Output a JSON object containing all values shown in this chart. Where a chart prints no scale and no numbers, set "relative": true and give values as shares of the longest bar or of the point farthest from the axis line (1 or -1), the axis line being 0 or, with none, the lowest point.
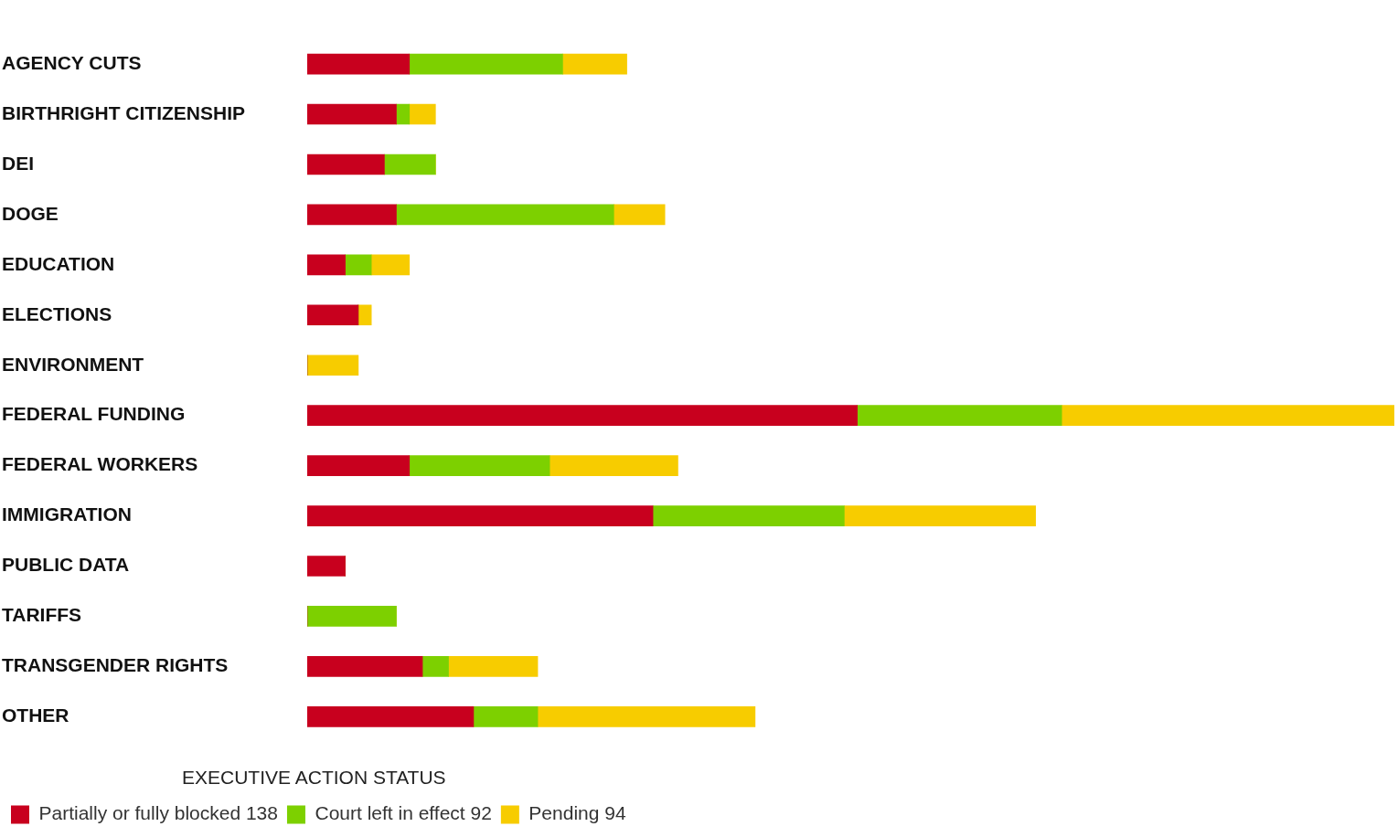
{
  "chart_data": {
    "type": "bar",
    "orientation": "horizontal",
    "stacked": true,
    "relative": true,
    "grid": false,
    "legend": "bottom left",
    "legend_title": "EXECUTIVE ACTION STATUS",
    "categories": [
      "AGENCY CUTS",
      "BIRTHRIGHT CITIZENSHIP",
      "DEI",
      "DOGE",
      "EDUCATION",
      "ELECTIONS",
      "ENVIRONMENT",
      "FEDERAL FUNDING",
      "FEDERAL WORKERS",
      "IMMIGRATION",
      "PUBLIC DATA",
      "TARIFFS",
      "TRANSGENDER RIGHTS",
      "OTHER"
    ],
    "series": [
      {
        "name": "Partially or fully blocked 138",
        "color": "#c8001e",
        "values": [
          0.094,
          0.082,
          0.071,
          0.082,
          0.035,
          0.047,
          0,
          0.506,
          0.094,
          0.318,
          0.035,
          0,
          0.106,
          0.153
        ]
      },
      {
        "name": "Court left in effect 92",
        "color": "#7dd000",
        "values": [
          0.141,
          0.012,
          0.047,
          0.2,
          0.024,
          0,
          0,
          0.188,
          0.129,
          0.176,
          0,
          0.082,
          0.024,
          0.059
        ]
      },
      {
        "name": "Pending 94",
        "color": "#f7cc00",
        "values": [
          0.059,
          0.024,
          0,
          0.047,
          0.035,
          0.012,
          0.047,
          0.306,
          0.118,
          0.176,
          0,
          0,
          0.082,
          0.2
        ]
      }
    ]
  }
}
